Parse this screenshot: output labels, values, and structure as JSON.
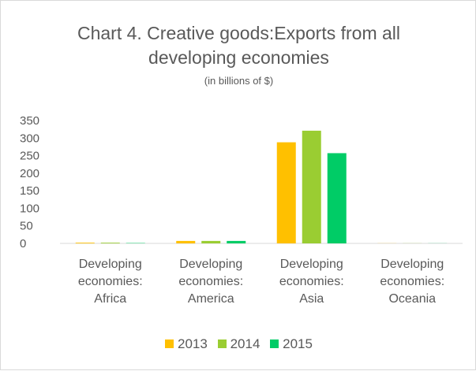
{
  "chart_data": {
    "type": "bar",
    "title": "Chart 4. Creative goods:Exports from all developing economies",
    "title_lines": [
      "Chart 4. Creative goods:Exports from all",
      "developing economies"
    ],
    "subtitle": "(in billions of $)",
    "categories": [
      [
        "Developing",
        "economies:",
        "Africa"
      ],
      [
        "Developing",
        "economies:",
        "America"
      ],
      [
        "Developing",
        "economies:",
        "Asia"
      ],
      [
        "Developing",
        "economies:",
        "Oceania"
      ]
    ],
    "series": [
      {
        "name": "2013",
        "color": "#ffc000",
        "values": [
          2,
          7,
          288,
          0.3
        ]
      },
      {
        "name": "2014",
        "color": "#9acd32",
        "values": [
          2,
          7,
          321,
          0.3
        ]
      },
      {
        "name": "2015",
        "color": "#00cc66",
        "values": [
          1,
          7,
          257,
          0.3
        ]
      }
    ],
    "yticks": [
      "0",
      "50",
      "100",
      "150",
      "200",
      "250",
      "300",
      "350"
    ],
    "ylim": [
      0,
      350
    ],
    "grid": false,
    "legend_position": "bottom"
  }
}
